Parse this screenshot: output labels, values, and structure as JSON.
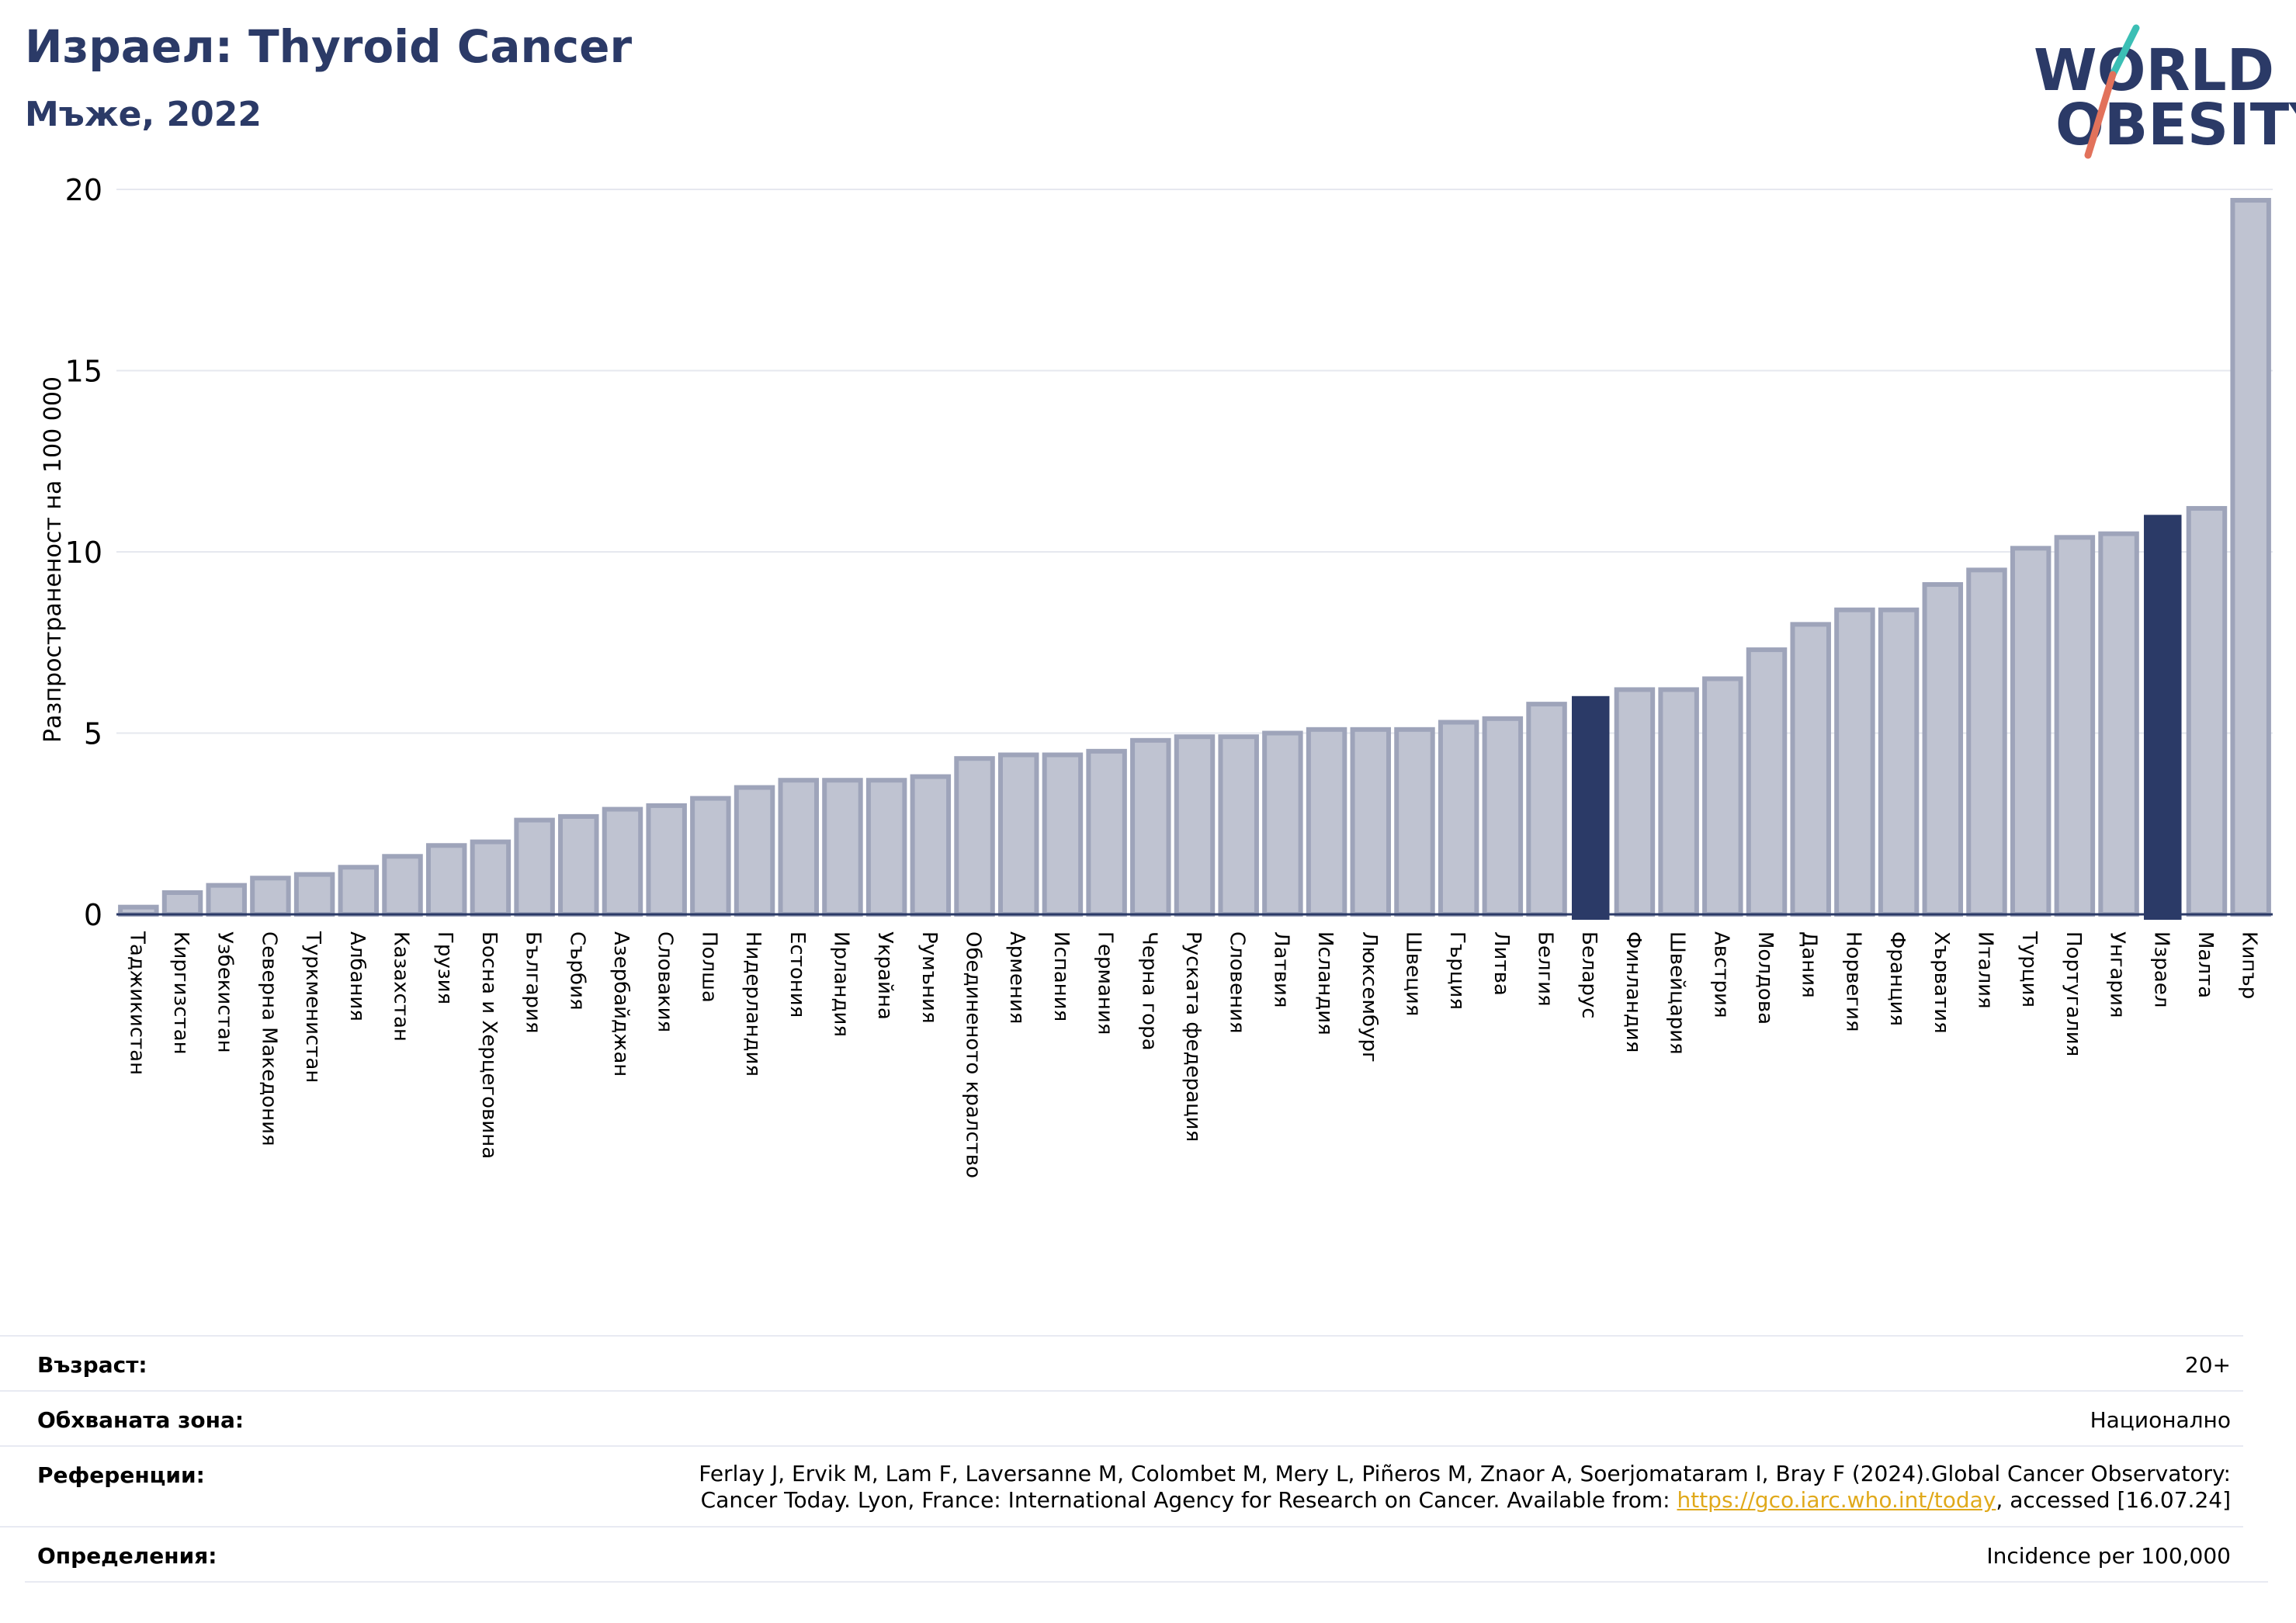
{
  "header": {
    "title": "Израел: Thyroid Cancer",
    "subtitle": "Мъже, 2022"
  },
  "logo": {
    "line1": "WORLD",
    "line2": "OBESITY",
    "accent_teal": "#3bbfb5",
    "accent_red": "#e2725b"
  },
  "chart_data": {
    "type": "bar",
    "ylabel": "Разпространеност  на 100 000",
    "xlabel": "",
    "ylim": [
      0,
      20
    ],
    "yticks": [
      0,
      5,
      10,
      15,
      20
    ],
    "grid": true,
    "bar_color": "#bfc3d1",
    "bar_edge_color": "#9ea4ba",
    "highlight_color": "#2b3a67",
    "highlighted": [
      "Беларус",
      "Израел"
    ],
    "categories": [
      "Таджикистан",
      "Киргизстан",
      "Узбекистан",
      "Северна Македония",
      "Туркменистан",
      "Албания",
      "Казахстан",
      "Грузия",
      "Босна и Херцеговина",
      "България",
      "Сърбия",
      "Азербайджан",
      "Словакия",
      "Полша",
      "Нидерландия",
      "Естония",
      "Ирландия",
      "Украйна",
      "Румъния",
      "Обединеното кралство",
      "Армения",
      "Испания",
      "Германия",
      "Черна гора",
      "Руската федерация",
      "Словения",
      "Латвия",
      "Исландия",
      "Люксембург",
      "Швеция",
      "Гърция",
      "Литва",
      "Белгия",
      "Беларус",
      "Финландия",
      "Швейцария",
      "Австрия",
      "Молдова",
      "Дания",
      "Норвегия",
      "Франция",
      "Хърватия",
      "Италия",
      "Турция",
      "Португалия",
      "Унгария",
      "Израел",
      "Малта",
      "Кипър"
    ],
    "values": [
      0.2,
      0.6,
      0.8,
      1.0,
      1.1,
      1.3,
      1.6,
      1.9,
      2.0,
      2.6,
      2.7,
      2.9,
      3.0,
      3.2,
      3.5,
      3.7,
      3.7,
      3.7,
      3.8,
      4.3,
      4.4,
      4.4,
      4.5,
      4.8,
      4.9,
      4.9,
      5.0,
      5.1,
      5.1,
      5.1,
      5.3,
      5.4,
      5.8,
      6.0,
      6.2,
      6.2,
      6.5,
      7.3,
      8.0,
      8.4,
      8.4,
      9.1,
      9.5,
      10.1,
      10.4,
      10.5,
      11.0,
      11.2,
      19.7
    ]
  },
  "info": {
    "age_label": "Възраст:",
    "age_value": "20+",
    "coverage_label": "Обхваната зона:",
    "coverage_value": "Национално",
    "references_label": "Референции:",
    "references_line1": "Ferlay J, Ervik M, Lam F, Laversanne M, Colombet M, Mery L, Piñeros M, Znaor A, Soerjomataram I, Bray F (2024).Global Cancer Observatory:",
    "references_line2_before": "Cancer Today. Lyon, France: International Agency for Research on Cancer. Available from: ",
    "references_link": "https://gco.iarc.who.int/today",
    "references_line2_after": ", accessed [16.07.24]",
    "definitions_label": "Определения:",
    "definitions_value": "Incidence per 100,000"
  }
}
